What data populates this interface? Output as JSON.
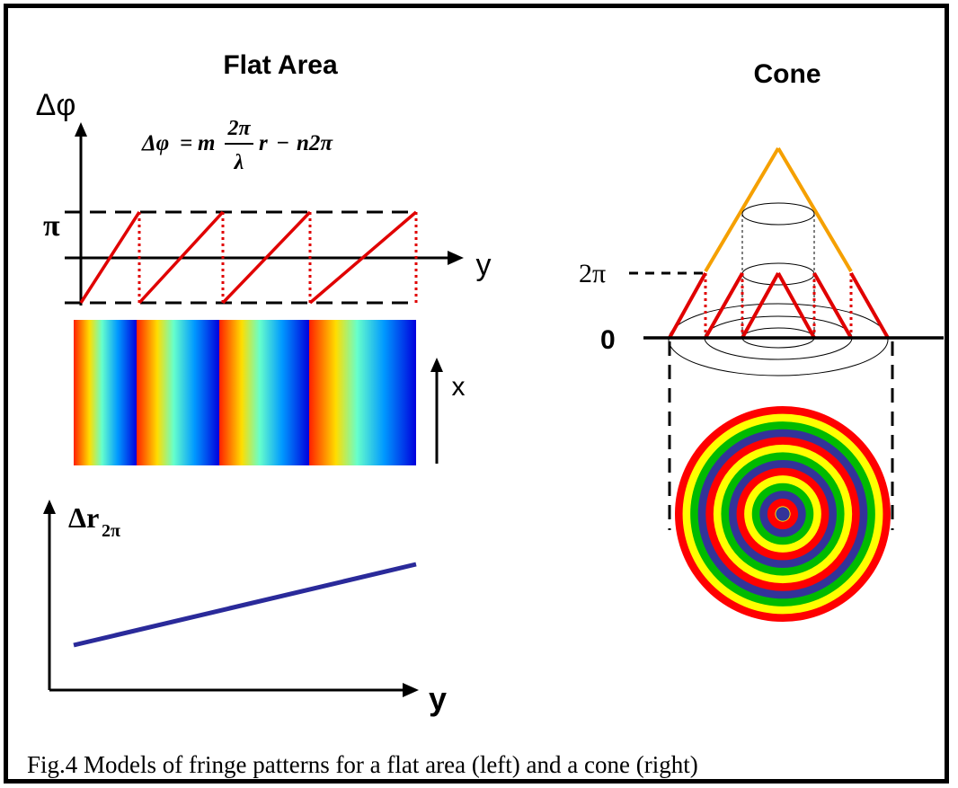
{
  "left_panel": {
    "title": "Flat Area",
    "y_axis_label_top": "Δφ",
    "pi_label": "π",
    "y_label_top": "y",
    "x_label": "x",
    "formula": {
      "lhs": "Δφ",
      "eq": "=",
      "m": "m",
      "frac_num": "2π",
      "frac_den": "λ",
      "r": "r",
      "minus": "−",
      "tail": "n2π"
    },
    "bottom_y_label": "Δr",
    "bottom_y_label_sub": "2π",
    "bottom_x_label": "y"
  },
  "right_panel": {
    "title": "Cone",
    "two_pi_label": "2π",
    "zero_label": "0"
  },
  "rings_colors": [
    "#ff0000",
    "#ffff00",
    "#00bb00",
    "#333399"
  ],
  "caption": "Fig.4 Models of fringe patterns for a flat area (left) and a cone (right)"
}
